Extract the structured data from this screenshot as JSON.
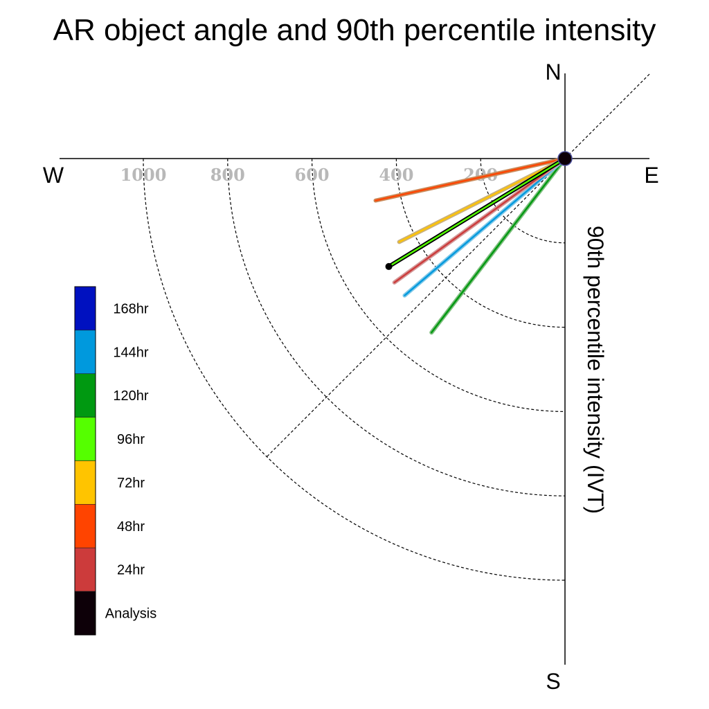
{
  "chart_data": {
    "type": "polar-line",
    "title": "AR object angle and 90th percentile intensity",
    "radial_label": "90th percentile intensity (IVT)",
    "compass": {
      "north": "N",
      "south": "S",
      "east": "E",
      "west": "W"
    },
    "radial_ticks": [
      {
        "value": 200,
        "label": "200"
      },
      {
        "value": 400,
        "label": "400"
      },
      {
        "value": 600,
        "label": "600"
      },
      {
        "value": 800,
        "label": "800"
      },
      {
        "value": 1000,
        "label": "1000"
      }
    ],
    "rings": [
      200,
      400,
      600,
      800,
      1000
    ],
    "diagonal": "NE-SW",
    "legend": [
      {
        "label": "168hr",
        "color": "#0011c0"
      },
      {
        "label": "144hr",
        "color": "#0099dd"
      },
      {
        "label": "120hr",
        "color": "#009911"
      },
      {
        "label": "96hr",
        "color": "#55ff00"
      },
      {
        "label": "72hr",
        "color": "#ffc400"
      },
      {
        "label": "48hr",
        "color": "#ff4400"
      },
      {
        "label": "24hr",
        "color": "#cc3b3b"
      },
      {
        "label": "Analysis",
        "color": "#0d0008"
      }
    ],
    "series": [
      {
        "name": "48hr",
        "color": "#ff4400",
        "outline": "#c98a5a",
        "angle_deg": 257.5,
        "intensity": 460
      },
      {
        "name": "72hr",
        "color": "#ffc400",
        "outline": "#c9b07a",
        "angle_deg": 243.3,
        "intensity": 440
      },
      {
        "name": "120hr",
        "color": "#009911",
        "outline": "#7fbf7f",
        "angle_deg": 217.5,
        "intensity": 520
      },
      {
        "name": "144hr",
        "color": "#0099dd",
        "outline": "#80c8e8",
        "angle_deg": 229.5,
        "intensity": 500
      },
      {
        "name": "24hr",
        "color": "#cc3b3b",
        "outline": "#d49a9a",
        "angle_deg": 234.0,
        "intensity": 500
      },
      {
        "name": "96hr",
        "color": "#55ff00",
        "outline": "#000000",
        "angle_deg": 238.5,
        "intensity": 490
      }
    ]
  }
}
